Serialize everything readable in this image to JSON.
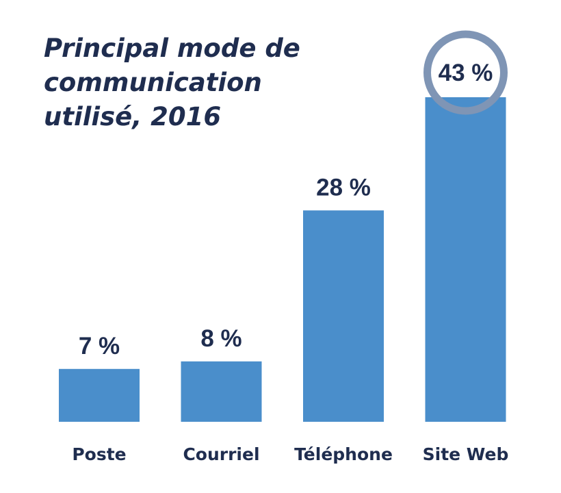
{
  "chart_data": {
    "type": "bar",
    "title_lines": [
      "Principal mode de",
      "communication",
      "utilisé, 2016"
    ],
    "categories": [
      "Poste",
      "Courriel",
      "Téléphone",
      "Site Web"
    ],
    "values": [
      7,
      8,
      28,
      43
    ],
    "value_labels": [
      "7 %",
      "8 %",
      "28 %",
      "43 %"
    ],
    "highlight_index": 3,
    "xlabel": "",
    "ylabel": "",
    "ylim": [
      0,
      43
    ],
    "grid": false,
    "legend": "none",
    "colors": {
      "bar": "#4a8ecb",
      "text": "#1f2d4f",
      "highlight_ring": "#7f95b5"
    }
  }
}
